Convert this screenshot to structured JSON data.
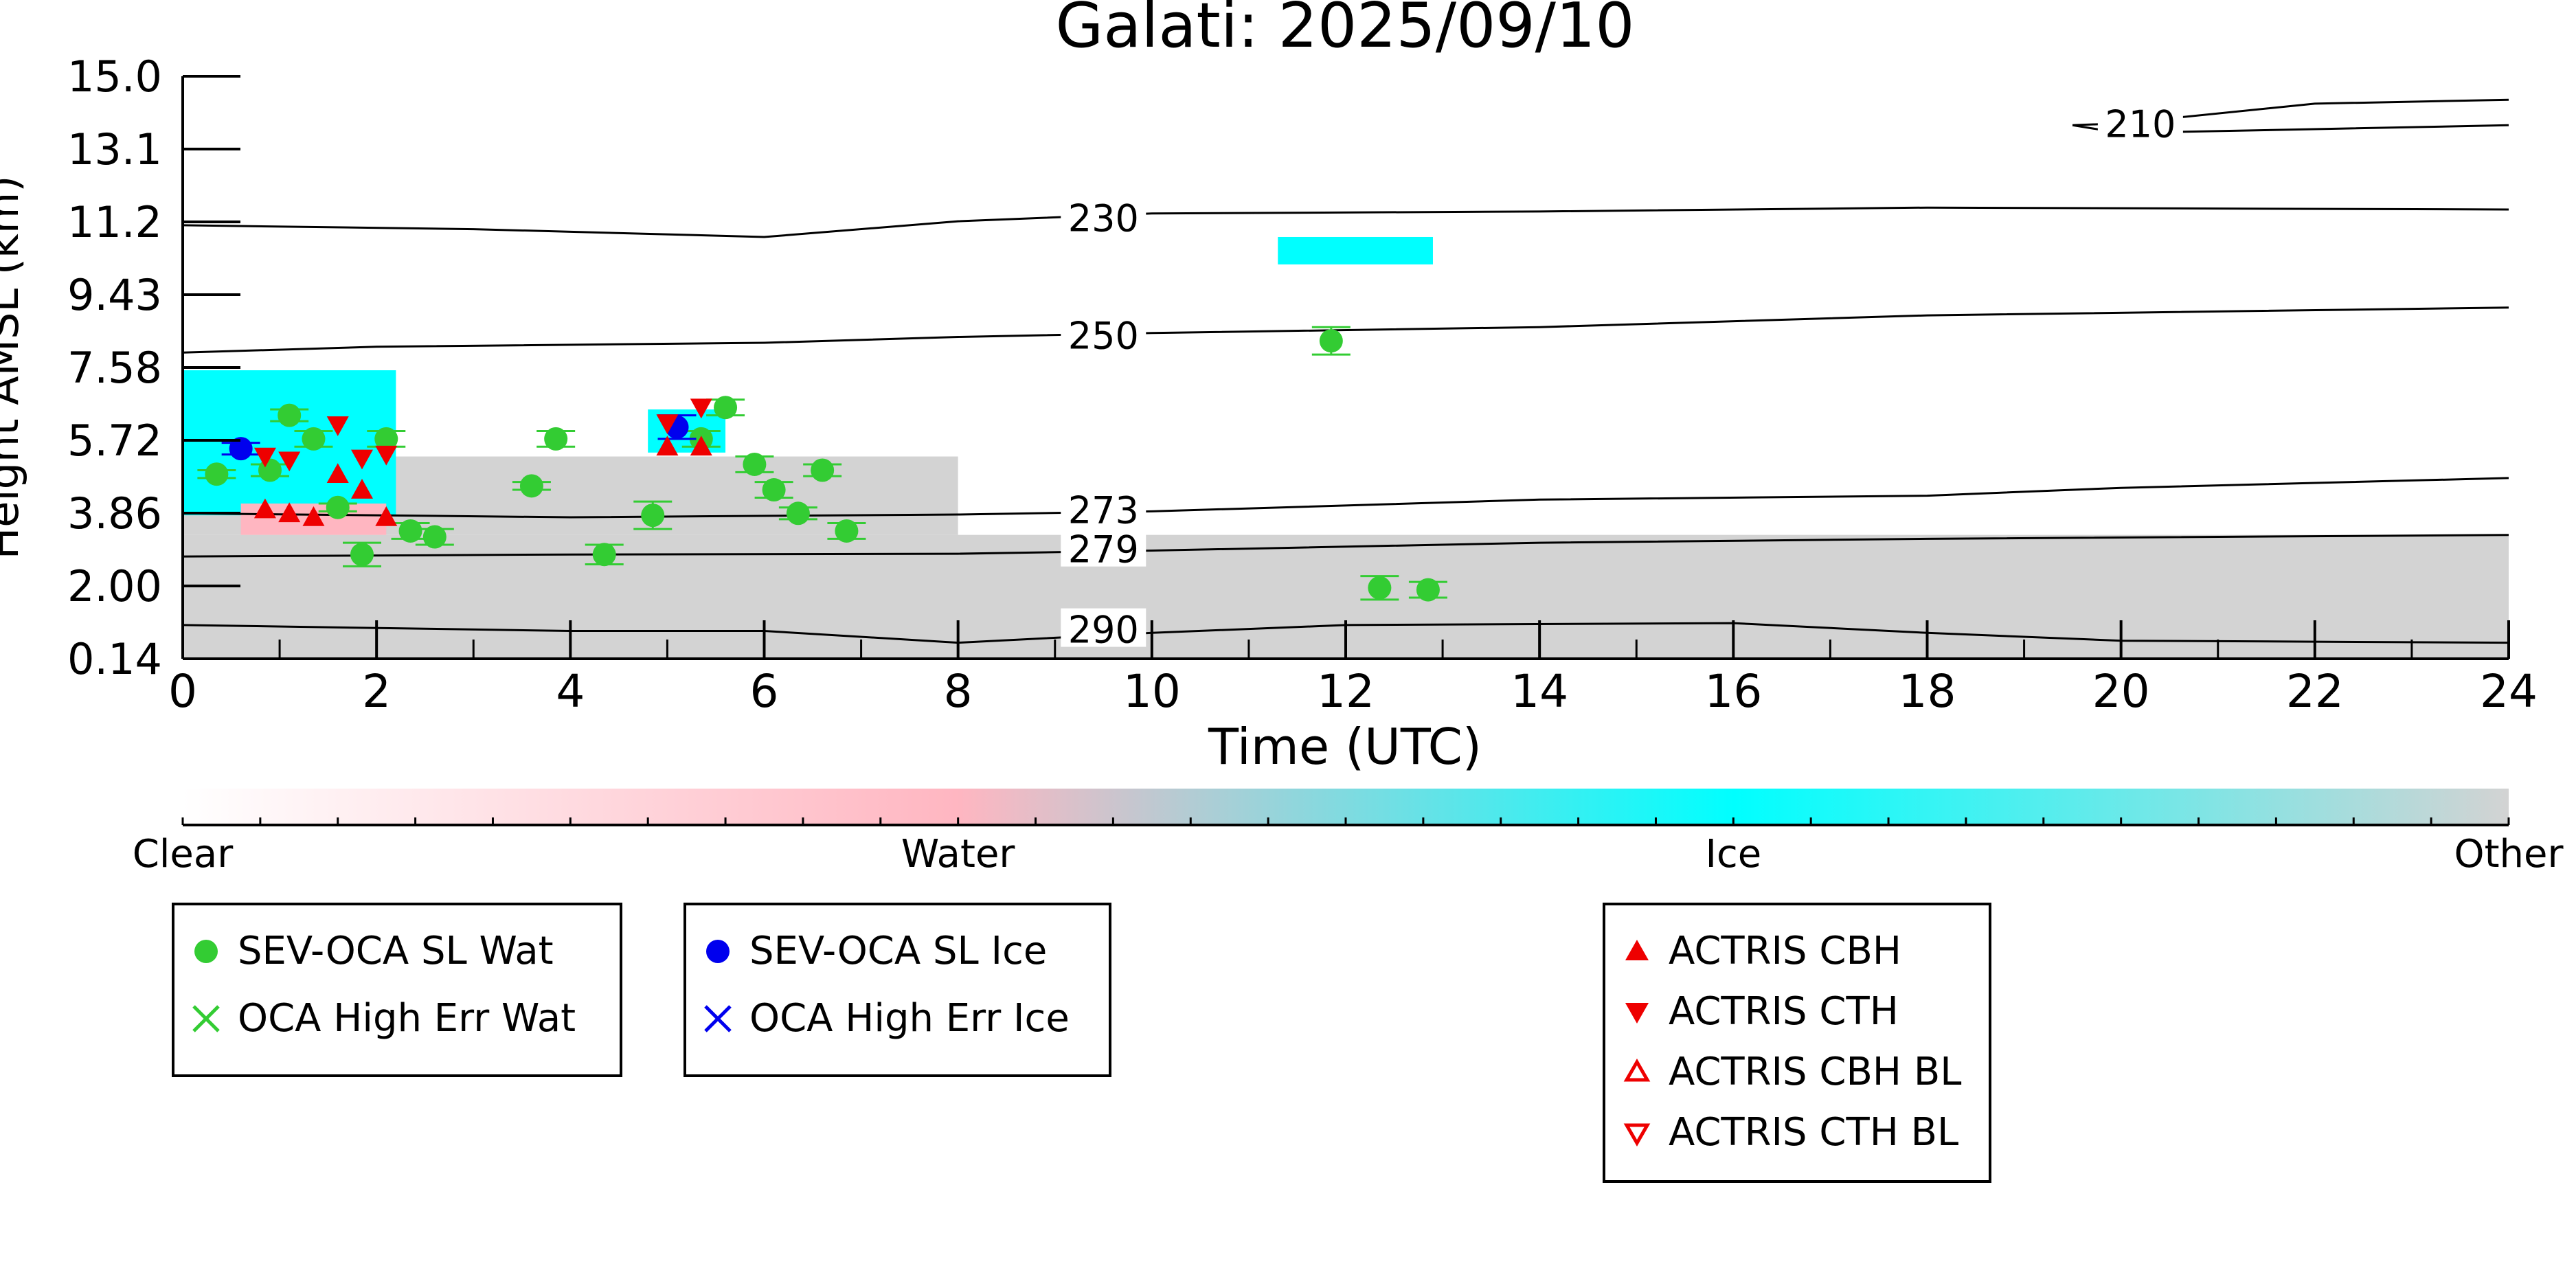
{
  "chart_data": {
    "type": "scatter",
    "title": "Galati: 2025/09/10",
    "xlabel": "Time (UTC)",
    "ylabel": "Height AMSL (km)",
    "xlim": [
      0,
      24
    ],
    "ylim": [
      0.14,
      15.0
    ],
    "x_ticks": [
      "0",
      "2",
      "4",
      "6",
      "8",
      "10",
      "12",
      "14",
      "16",
      "18",
      "20",
      "22",
      "24"
    ],
    "y_ticks": [
      "0.14",
      "2.00",
      "3.86",
      "5.72",
      "7.58",
      "9.43",
      "11.2",
      "13.1",
      "15.0"
    ],
    "contours": [
      {
        "label": "210",
        "label_at": [
          20.2,
          13.8
        ],
        "points": [
          [
            19.5,
            13.75
          ],
          [
            20.0,
            13.8
          ],
          [
            22.0,
            14.3
          ],
          [
            24.0,
            14.4
          ]
        ],
        "points2": [
          [
            19.5,
            13.75
          ],
          [
            20.0,
            13.55
          ],
          [
            22.0,
            13.65
          ],
          [
            24.0,
            13.75
          ]
        ]
      },
      {
        "label": "230",
        "label_at": [
          9.5,
          11.4
        ],
        "points": [
          [
            0,
            11.2
          ],
          [
            3,
            11.1
          ],
          [
            6,
            10.9
          ],
          [
            8,
            11.3
          ],
          [
            10,
            11.5
          ],
          [
            14,
            11.55
          ],
          [
            18,
            11.65
          ],
          [
            24,
            11.6
          ]
        ]
      },
      {
        "label": "250",
        "label_at": [
          9.5,
          8.4
        ],
        "points": [
          [
            0,
            7.95
          ],
          [
            2,
            8.1
          ],
          [
            6,
            8.2
          ],
          [
            8,
            8.35
          ],
          [
            10,
            8.45
          ],
          [
            14,
            8.6
          ],
          [
            18,
            8.9
          ],
          [
            24,
            9.1
          ]
        ]
      },
      {
        "label": "273",
        "label_at": [
          9.5,
          3.95
        ],
        "points": [
          [
            0,
            3.85
          ],
          [
            4,
            3.75
          ],
          [
            8,
            3.82
          ],
          [
            10,
            3.9
          ],
          [
            14,
            4.2
          ],
          [
            18,
            4.3
          ],
          [
            20,
            4.5
          ],
          [
            24,
            4.75
          ]
        ]
      },
      {
        "label": "279",
        "label_at": [
          9.5,
          2.95
        ],
        "points": [
          [
            0,
            2.75
          ],
          [
            4,
            2.8
          ],
          [
            8,
            2.82
          ],
          [
            10,
            2.9
          ],
          [
            14,
            3.1
          ],
          [
            18,
            3.2
          ],
          [
            24,
            3.3
          ]
        ]
      },
      {
        "label": "290",
        "label_at": [
          9.5,
          0.9
        ],
        "points": [
          [
            0,
            1.0
          ],
          [
            4,
            0.85
          ],
          [
            6,
            0.85
          ],
          [
            8,
            0.55
          ],
          [
            10,
            0.8
          ],
          [
            12,
            1.0
          ],
          [
            16,
            1.05
          ],
          [
            18,
            0.8
          ],
          [
            20,
            0.6
          ],
          [
            24,
            0.55
          ]
        ]
      }
    ],
    "background_ranges": [
      {
        "class": "Other",
        "x": [
          0,
          24
        ],
        "y": [
          0.14,
          3.3
        ]
      },
      {
        "class": "Other",
        "x": [
          0,
          8
        ],
        "y": [
          3.3,
          5.3
        ]
      },
      {
        "class": "Ice",
        "x": [
          0,
          2.2
        ],
        "y": [
          3.8,
          7.5
        ]
      },
      {
        "class": "Ice",
        "x": [
          4.8,
          5.6
        ],
        "y": [
          5.4,
          6.5
        ]
      },
      {
        "class": "Ice",
        "x": [
          11.3,
          12.9
        ],
        "y": [
          10.2,
          10.9
        ]
      },
      {
        "class": "Water",
        "x": [
          0.6,
          2.1
        ],
        "y": [
          3.3,
          4.1
        ]
      }
    ],
    "series": [
      {
        "name": "SEV-OCA SL Wat",
        "marker": "filled-circle",
        "color": "#33cc33",
        "x": [
          0.35,
          0.9,
          1.1,
          1.35,
          1.6,
          1.85,
          2.1,
          2.35,
          2.6,
          3.6,
          3.85,
          4.35,
          4.85,
          5.35,
          5.6,
          5.9,
          6.1,
          6.35,
          6.6,
          6.85,
          11.85,
          12.35,
          12.85
        ],
        "y": [
          4.85,
          4.95,
          6.35,
          5.75,
          4.0,
          2.8,
          5.75,
          3.4,
          3.25,
          4.55,
          5.75,
          2.8,
          3.8,
          5.75,
          6.55,
          5.1,
          4.45,
          3.85,
          4.95,
          3.4,
          8.25,
          1.95,
          1.9
        ],
        "err": [
          0.1,
          0.15,
          0.15,
          0.2,
          0.1,
          0.3,
          0.2,
          0.2,
          0.2,
          0.1,
          0.2,
          0.25,
          0.35,
          0.2,
          0.2,
          0.2,
          0.2,
          0.15,
          0.15,
          0.2,
          0.35,
          0.3,
          0.2
        ]
      },
      {
        "name": "OCA High Err Wat",
        "marker": "x",
        "color": "#33cc33",
        "x": [],
        "y": []
      },
      {
        "name": "SEV-OCA SL Ice",
        "marker": "filled-circle",
        "color": "#0000ee",
        "x": [
          0.6,
          5.1
        ],
        "y": [
          5.5,
          6.05
        ],
        "err": [
          0.15,
          0.3
        ]
      },
      {
        "name": "OCA High Err Ice",
        "marker": "x",
        "color": "#0000ee",
        "x": [],
        "y": []
      },
      {
        "name": "ACTRIS CBH",
        "marker": "filled-triangle-up",
        "color": "#ee0000",
        "x": [
          0.85,
          1.1,
          1.35,
          1.6,
          1.85,
          2.1,
          5.0,
          5.35
        ],
        "y": [
          3.95,
          3.85,
          3.75,
          4.85,
          4.45,
          3.75,
          5.55,
          5.55
        ]
      },
      {
        "name": "ACTRIS CTH",
        "marker": "filled-triangle-down",
        "color": "#ee0000",
        "x": [
          0.85,
          1.1,
          1.6,
          1.85,
          2.1,
          5.0,
          5.35
        ],
        "y": [
          5.3,
          5.2,
          6.1,
          5.25,
          5.35,
          6.15,
          6.55
        ]
      },
      {
        "name": "ACTRIS CBH BL",
        "marker": "open-triangle-up",
        "color": "#ee0000",
        "x": [],
        "y": []
      },
      {
        "name": "ACTRIS CTH BL",
        "marker": "open-triangle-down",
        "color": "#ee0000",
        "x": [],
        "y": []
      }
    ],
    "colorbar": {
      "labels": [
        "Clear",
        "Water",
        "Ice",
        "Other"
      ],
      "stops": [
        "#ffffff",
        "#ffb6c1",
        "#00ffff",
        "#d3d3d3"
      ]
    },
    "grid": false
  },
  "legend_groups": [
    {
      "items": [
        {
          "label": "SEV-OCA SL Wat",
          "icon": "filled-circle-icon",
          "color": "#33cc33"
        },
        {
          "label": "OCA High Err Wat",
          "icon": "x-icon",
          "color": "#33cc33"
        }
      ]
    },
    {
      "items": [
        {
          "label": "SEV-OCA SL Ice",
          "icon": "filled-circle-icon",
          "color": "#0000ee"
        },
        {
          "label": "OCA High Err Ice",
          "icon": "x-icon",
          "color": "#0000ee"
        }
      ]
    },
    {
      "items": [
        {
          "label": "ACTRIS CBH",
          "icon": "filled-triangle-up-icon",
          "color": "#ee0000"
        },
        {
          "label": "ACTRIS CTH",
          "icon": "filled-triangle-down-icon",
          "color": "#ee0000"
        },
        {
          "label": "ACTRIS CBH BL",
          "icon": "open-triangle-up-icon",
          "color": "#ee0000"
        },
        {
          "label": "ACTRIS CTH BL",
          "icon": "open-triangle-down-icon",
          "color": "#ee0000"
        }
      ]
    }
  ]
}
